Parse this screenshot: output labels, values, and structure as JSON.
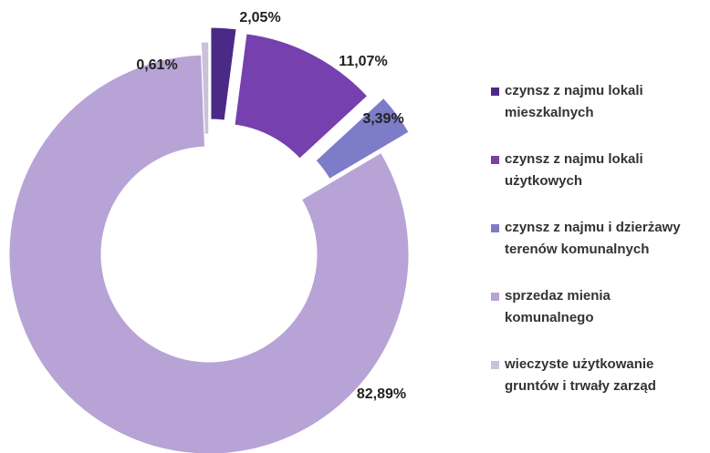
{
  "chart_data": {
    "type": "donut",
    "categories": [
      "czynsz z najmu lokali mieszkalnych",
      "czynsz z najmu lokali użytkowych",
      "czynsz z najmu i dzierżawy terenów komunalnych",
      "sprzedaz mienia komunalnego",
      "wieczyste użytkowanie gruntów i trwały zarząd"
    ],
    "values": [
      2.05,
      11.07,
      3.39,
      82.89,
      0.61
    ],
    "value_labels": [
      "2,05%",
      "11,07%",
      "3,39%",
      "82,89%",
      "0,61%"
    ],
    "colors": [
      "#4a2a86",
      "#7640ae",
      "#7d7cc9",
      "#b8a3d6",
      "#c9c2d9"
    ],
    "legend": "right"
  }
}
